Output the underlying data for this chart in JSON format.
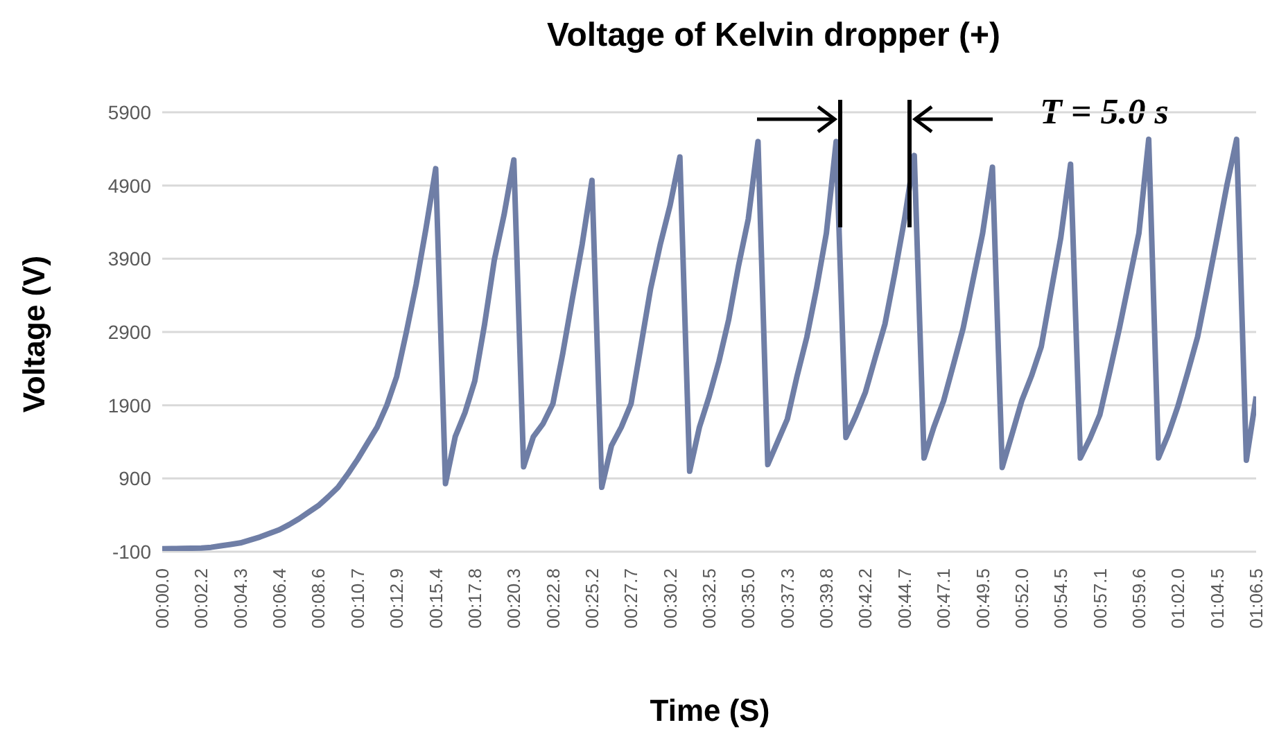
{
  "chart_data": {
    "type": "line",
    "title": "Voltage of Kelvin dropper (+)",
    "xlabel": "Time (S)",
    "ylabel": "Voltage (V)",
    "annotations": [
      "T = 5.0 s"
    ],
    "categories": [
      "00:00.0",
      null,
      null,
      null,
      "00:02.2",
      null,
      null,
      null,
      "00:04.3",
      null,
      null,
      null,
      "00:06.4",
      null,
      null,
      null,
      "00:08.6",
      null,
      null,
      null,
      "00:10.7",
      null,
      null,
      null,
      "00:12.9",
      null,
      null,
      null,
      "00:15.4",
      null,
      null,
      null,
      "00:17.8",
      null,
      null,
      null,
      "00:20.3",
      null,
      null,
      null,
      "00:22.8",
      null,
      null,
      null,
      "00:25.2",
      null,
      null,
      null,
      "00:27.7",
      null,
      null,
      null,
      "00:30.2",
      null,
      null,
      null,
      "00:32.5",
      null,
      null,
      null,
      "00:35.0",
      null,
      null,
      null,
      "00:37.3",
      null,
      null,
      null,
      "00:39.8",
      null,
      null,
      null,
      "00:42.2",
      null,
      null,
      null,
      "00:44.7",
      null,
      null,
      null,
      "00:47.1",
      null,
      null,
      null,
      "00:49.5",
      null,
      null,
      null,
      "00:52.0",
      null,
      null,
      null,
      "00:54.5",
      null,
      null,
      null,
      "00:57.1",
      null,
      null,
      null,
      "00:59.6",
      null,
      null,
      null,
      "01:02.0",
      null,
      null,
      null,
      "01:04.5",
      null,
      null,
      null,
      "01:06.5"
    ],
    "series": [
      {
        "color": "#6f7ea6",
        "values": [
          -60,
          -58,
          -55,
          -53,
          -50,
          -40,
          -20,
          0,
          20,
          60,
          100,
          150,
          200,
          270,
          350,
          440,
          530,
          650,
          780,
          960,
          1160,
          1380,
          1600,
          1900,
          2290,
          2900,
          3550,
          4310,
          5130,
          830,
          1470,
          1800,
          2230,
          3000,
          3880,
          4500,
          5250,
          1060,
          1470,
          1650,
          1920,
          2600,
          3360,
          4100,
          4970,
          780,
          1350,
          1600,
          1920,
          2700,
          3490,
          4100,
          4630,
          5290,
          1000,
          1600,
          2020,
          2500,
          3070,
          3800,
          4440,
          5500,
          1090,
          1400,
          1710,
          2300,
          2830,
          3500,
          4250,
          5500,
          1460,
          1750,
          2080,
          2550,
          3010,
          3700,
          4440,
          5310,
          1180,
          1600,
          1960,
          2450,
          2950,
          3600,
          4250,
          5150,
          1050,
          1500,
          1960,
          2300,
          2700,
          3450,
          4190,
          5190,
          1180,
          1450,
          1770,
          2350,
          2950,
          3600,
          4250,
          5530,
          1180,
          1500,
          1890,
          2350,
          2830,
          3500,
          4190,
          4900,
          5530,
          1150,
          2020
        ]
      }
    ],
    "ylim": [
      -100,
      5900
    ],
    "yticks": [
      -100,
      900,
      1900,
      2900,
      3900,
      4900,
      5900
    ],
    "grid": "y",
    "legend": false,
    "marker": "none",
    "line_style": "solid"
  }
}
